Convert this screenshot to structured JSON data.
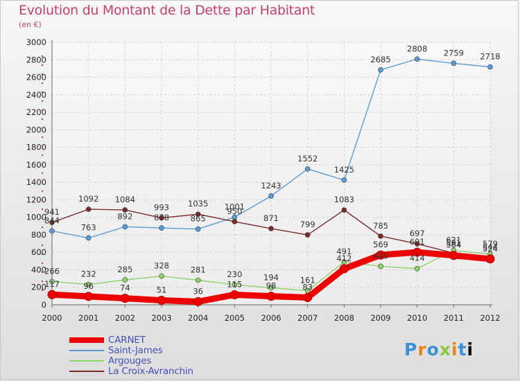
{
  "chart_data": {
    "type": "line",
    "title": "Evolution du Montant de la Dette par Habitant",
    "subtitle": "(en €)",
    "xlabel": "",
    "ylabel": "",
    "x": [
      "2000",
      "2001",
      "2002",
      "2003",
      "2004",
      "2005",
      "2006",
      "2007",
      "2008",
      "2009",
      "2010",
      "2011",
      "2012"
    ],
    "ylim": [
      0,
      3000
    ],
    "yticks": [
      0,
      200,
      400,
      600,
      800,
      1000,
      1200,
      1400,
      1600,
      1800,
      2000,
      2200,
      2400,
      2600,
      2800,
      3000
    ],
    "grid": true,
    "legend_position": "bottom-left",
    "series": [
      {
        "name": "CARNET",
        "color": "#ee0000",
        "values": [
          117,
          96,
          74,
          51,
          36,
          115,
          98,
          83,
          412,
          569,
          601,
          564,
          524
        ]
      },
      {
        "name": "Saint-James",
        "color": "#5b9bd5",
        "values": [
          844,
          763,
          892,
          878,
          865,
          1001,
          1243,
          1552,
          1425,
          2685,
          2808,
          2759,
          2718
        ]
      },
      {
        "name": "Argouges",
        "color": "#8fd16a",
        "values": [
          266,
          232,
          285,
          328,
          281,
          230,
          194,
          161,
          491,
          440,
          414,
          621,
          579
        ]
      },
      {
        "name": "La Croix-Avranchin",
        "color": "#7a2a2a",
        "values": [
          941,
          1092,
          1084,
          993,
          1035,
          950,
          871,
          799,
          1083,
          785,
          697,
          591,
          544
        ]
      }
    ]
  },
  "brand": {
    "letters": [
      "P",
      "r",
      "o",
      "x",
      "i",
      "t",
      "i"
    ]
  }
}
